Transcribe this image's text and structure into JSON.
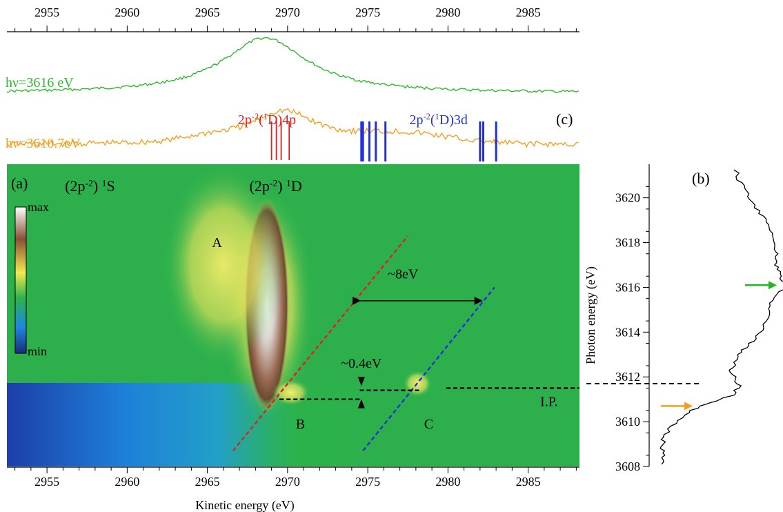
{
  "figure": {
    "panel_labels": {
      "a": "(a)",
      "b": "(b)",
      "c": "(c)"
    },
    "colorbar": {
      "max_label": "max",
      "min_label": "min"
    }
  },
  "chart_data": [
    {
      "panel": "a",
      "type": "heatmap",
      "xlabel": "Kinetic energy (eV)",
      "xlim": [
        2952.5,
        2988.2
      ],
      "ylim": [
        3608.0,
        3621.5
      ],
      "x_ticks": [
        2955,
        2960,
        2965,
        2970,
        2975,
        2980,
        2985
      ],
      "colorbar_stops": [
        "#1a2a7a",
        "#1e88e0",
        "#2cb44a",
        "#f2ea52",
        "#8a5035",
        "#ffffff"
      ],
      "features": [
        {
          "label_sup": "(2p",
          "sup": "-2",
          "post": ") ",
          "sup2": "1",
          "post2": "S",
          "x": 2958.7,
          "y": 3620.3,
          "color": "#000000"
        },
        {
          "label_sup": "(2p",
          "sup": "-2",
          "post": ") ",
          "sup2": "1",
          "post2": "D",
          "x": 2970.2,
          "y": 3620.3,
          "color": "#000000"
        }
      ],
      "labels": [
        {
          "text": "A",
          "x": 2965.6,
          "y": 3617.8
        },
        {
          "text": "B",
          "x": 2970.8,
          "y": 3609.7
        },
        {
          "text": "C",
          "x": 2978.8,
          "y": 3609.7
        },
        {
          "text": "I.P.",
          "x": 2986.3,
          "y": 3610.7
        },
        {
          "text": "~8eV",
          "x": 2977.2,
          "y": 3616.4
        },
        {
          "text": "~0.4eV",
          "x": 2974.6,
          "y": 3612.4
        }
      ],
      "lines": [
        {
          "name": "red-diagonal",
          "color": "#e02020",
          "points": [
            [
              2966.6,
              3608.7
            ],
            [
              2977.5,
              3618.3
            ]
          ]
        },
        {
          "name": "blue-diagonal",
          "color": "#2030e0",
          "points": [
            [
              2974.7,
              3608.7
            ],
            [
              2982.9,
              3616.0
            ]
          ]
        },
        {
          "name": "ip-line",
          "color": "#000000",
          "points": [
            [
              2979.9,
              3611.5
            ],
            [
              2988.2,
              3611.5
            ]
          ]
        },
        {
          "name": "b-level",
          "color": "#000000",
          "points": [
            [
              2969.5,
              3611.0
            ],
            [
              2974.5,
              3611.0
            ]
          ]
        },
        {
          "name": "c-level",
          "color": "#000000",
          "points": [
            [
              2974.5,
              3611.4
            ],
            [
              2978.3,
              3611.4
            ]
          ]
        }
      ],
      "blobs": [
        {
          "name": "peak-1D",
          "x": 2968.7,
          "y": 3615.2,
          "rx": 1.4,
          "ry": 4.8
        },
        {
          "name": "peak-A",
          "x": 2966.0,
          "y": 3617.0,
          "rx": 3.8,
          "ry": 4.5
        },
        {
          "name": "peak-B",
          "x": 2970.2,
          "y": 3611.3,
          "rx": 1.2,
          "ry": 0.6
        },
        {
          "name": "peak-C",
          "x": 2978.1,
          "y": 3611.7,
          "rx": 0.9,
          "ry": 0.6
        }
      ]
    },
    {
      "panel": "b",
      "type": "line",
      "ylabel": "Photon energy (eV)",
      "ylim": [
        3608.0,
        3621.5
      ],
      "y_ticks": [
        3608,
        3610,
        3612,
        3614,
        3616,
        3618,
        3620
      ],
      "arrows": [
        {
          "color": "#f0a020",
          "y": 3610.7
        },
        {
          "color": "#22b822",
          "y": 3616.1
        }
      ],
      "ip_y": 3611.7,
      "series": [
        {
          "values": [
            [
              0.12,
              3608.1
            ],
            [
              0.13,
              3608.5
            ],
            [
              0.1,
              3608.9
            ],
            [
              0.12,
              3609.3
            ],
            [
              0.18,
              3609.8
            ],
            [
              0.28,
              3610.3
            ],
            [
              0.42,
              3610.7
            ],
            [
              0.58,
              3611.0
            ],
            [
              0.7,
              3611.2
            ],
            [
              0.74,
              3611.6
            ],
            [
              0.7,
              3612.0
            ],
            [
              0.68,
              3612.4
            ],
            [
              0.74,
              3612.9
            ],
            [
              0.8,
              3613.3
            ],
            [
              0.88,
              3613.7
            ],
            [
              0.94,
              3614.2
            ],
            [
              0.98,
              3614.8
            ],
            [
              1.02,
              3615.3
            ],
            [
              1.08,
              3615.8
            ],
            [
              1.12,
              3616.2
            ],
            [
              1.08,
              3616.6
            ],
            [
              1.06,
              3617.0
            ],
            [
              1.04,
              3617.4
            ],
            [
              1.06,
              3617.8
            ],
            [
              1.02,
              3618.3
            ],
            [
              0.98,
              3618.8
            ],
            [
              0.93,
              3619.3
            ],
            [
              0.86,
              3619.8
            ],
            [
              0.8,
              3620.3
            ],
            [
              0.74,
              3620.8
            ],
            [
              0.7,
              3621.4
            ]
          ],
          "color": "#000000"
        }
      ]
    },
    {
      "panel": "c",
      "type": "line",
      "x_ticks": [
        2955,
        2960,
        2965,
        2970,
        2975,
        2980,
        2985
      ],
      "series": [
        {
          "name": "hν=3616 eV",
          "color": "#2eb82e",
          "peak_x": 2968.6,
          "peak_height": 1.0
        },
        {
          "name": "hν=3610.7eV",
          "color": "#f0a020",
          "peak_x": 2969.7,
          "peak_height": 0.8
        }
      ],
      "annotations": [
        {
          "pre": "2p",
          "sup1": "-2",
          "mid": "(",
          "sup2": "1",
          "post": "D)4p",
          "color": "#e02020",
          "x": 2966.9
        },
        {
          "pre": "2p",
          "sup1": "-2",
          "mid": "(",
          "sup2": "1",
          "post": "D)3d",
          "color": "#2030e0",
          "x": 2977.6
        }
      ],
      "red_sticks": [
        2969.0,
        2969.3,
        2969.6,
        2970.1
      ],
      "blue_sticks": [
        2974.6,
        2974.7,
        2975.1,
        2975.5,
        2976.1,
        2982.0,
        2982.2,
        2983.0
      ]
    }
  ]
}
